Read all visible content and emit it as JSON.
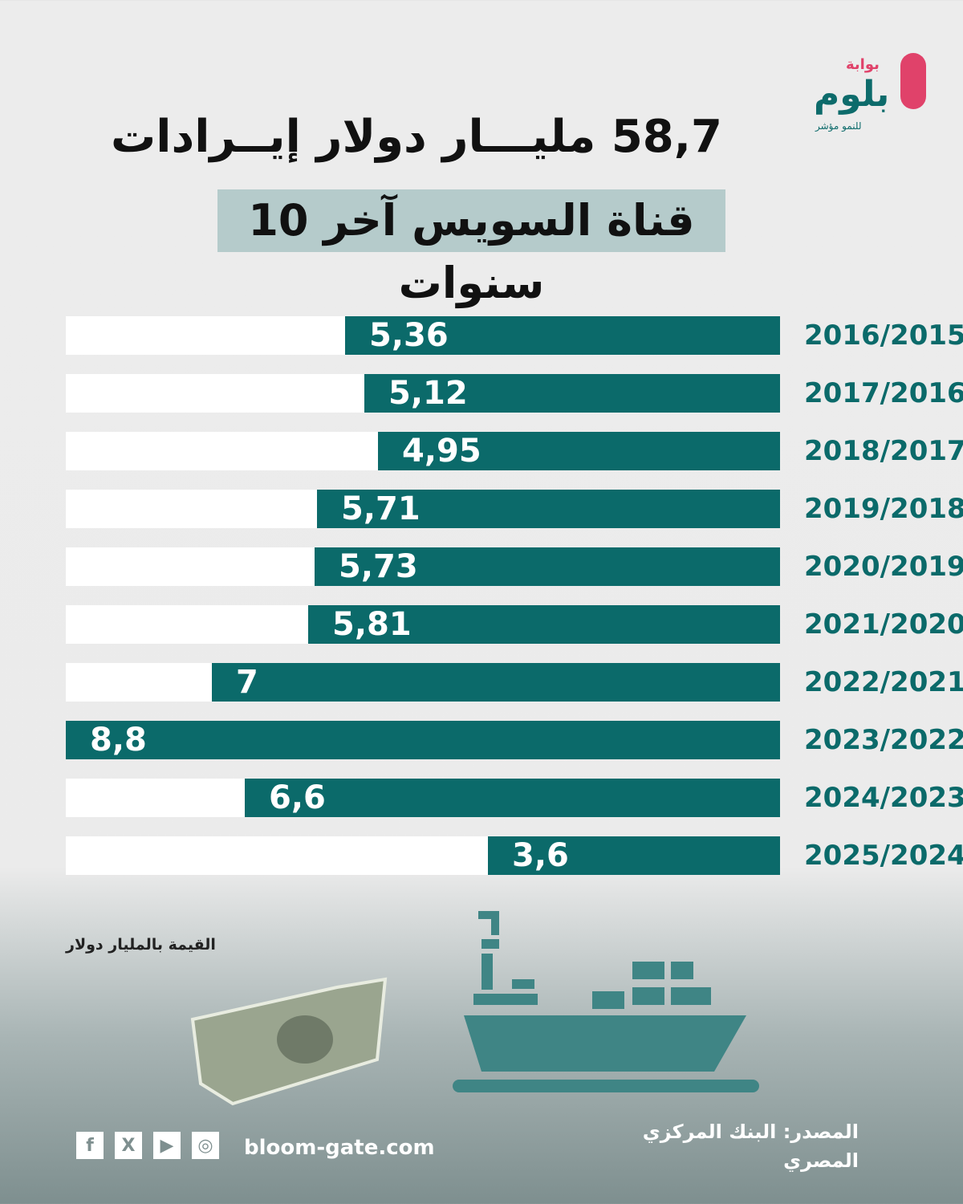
{
  "logo": {
    "sub": "بوابة",
    "main": "بلوم",
    "tagline": "للنمو مؤشر"
  },
  "title": {
    "line1": "58,7 مليـــار دولار إيــرادات",
    "line2": "قناة السويس آخر 10 سنوات"
  },
  "chart_data": {
    "type": "bar",
    "orientation": "horizontal",
    "title": "58,7 مليار دولار إيرادات قناة السويس آخر 10 سنوات",
    "unit_label": "القيمة بالمليار دولار",
    "categories": [
      "2016/2015",
      "2017/2016",
      "2018/2017",
      "2019/2018",
      "2020/2019",
      "2021/2020",
      "2022/2021",
      "2023/2022",
      "2024/2023",
      "2025/2024"
    ],
    "labels": [
      "5,36",
      "5,12",
      "4,95",
      "5,71",
      "5,73",
      "5,81",
      "7",
      "8,8",
      "6,6",
      "3,6"
    ],
    "values": [
      5.36,
      5.12,
      4.95,
      5.71,
      5.73,
      5.81,
      7,
      8.8,
      6.6,
      3.6
    ],
    "xlim": [
      0,
      8.8
    ],
    "colors": {
      "bar": "#0b6a6a",
      "track": "#ffffff"
    }
  },
  "footer": {
    "source": "المصدر: البنك المركزي المصري",
    "site": "bloom-gate.com",
    "social": [
      "f",
      "X",
      "▶",
      "◎"
    ]
  }
}
